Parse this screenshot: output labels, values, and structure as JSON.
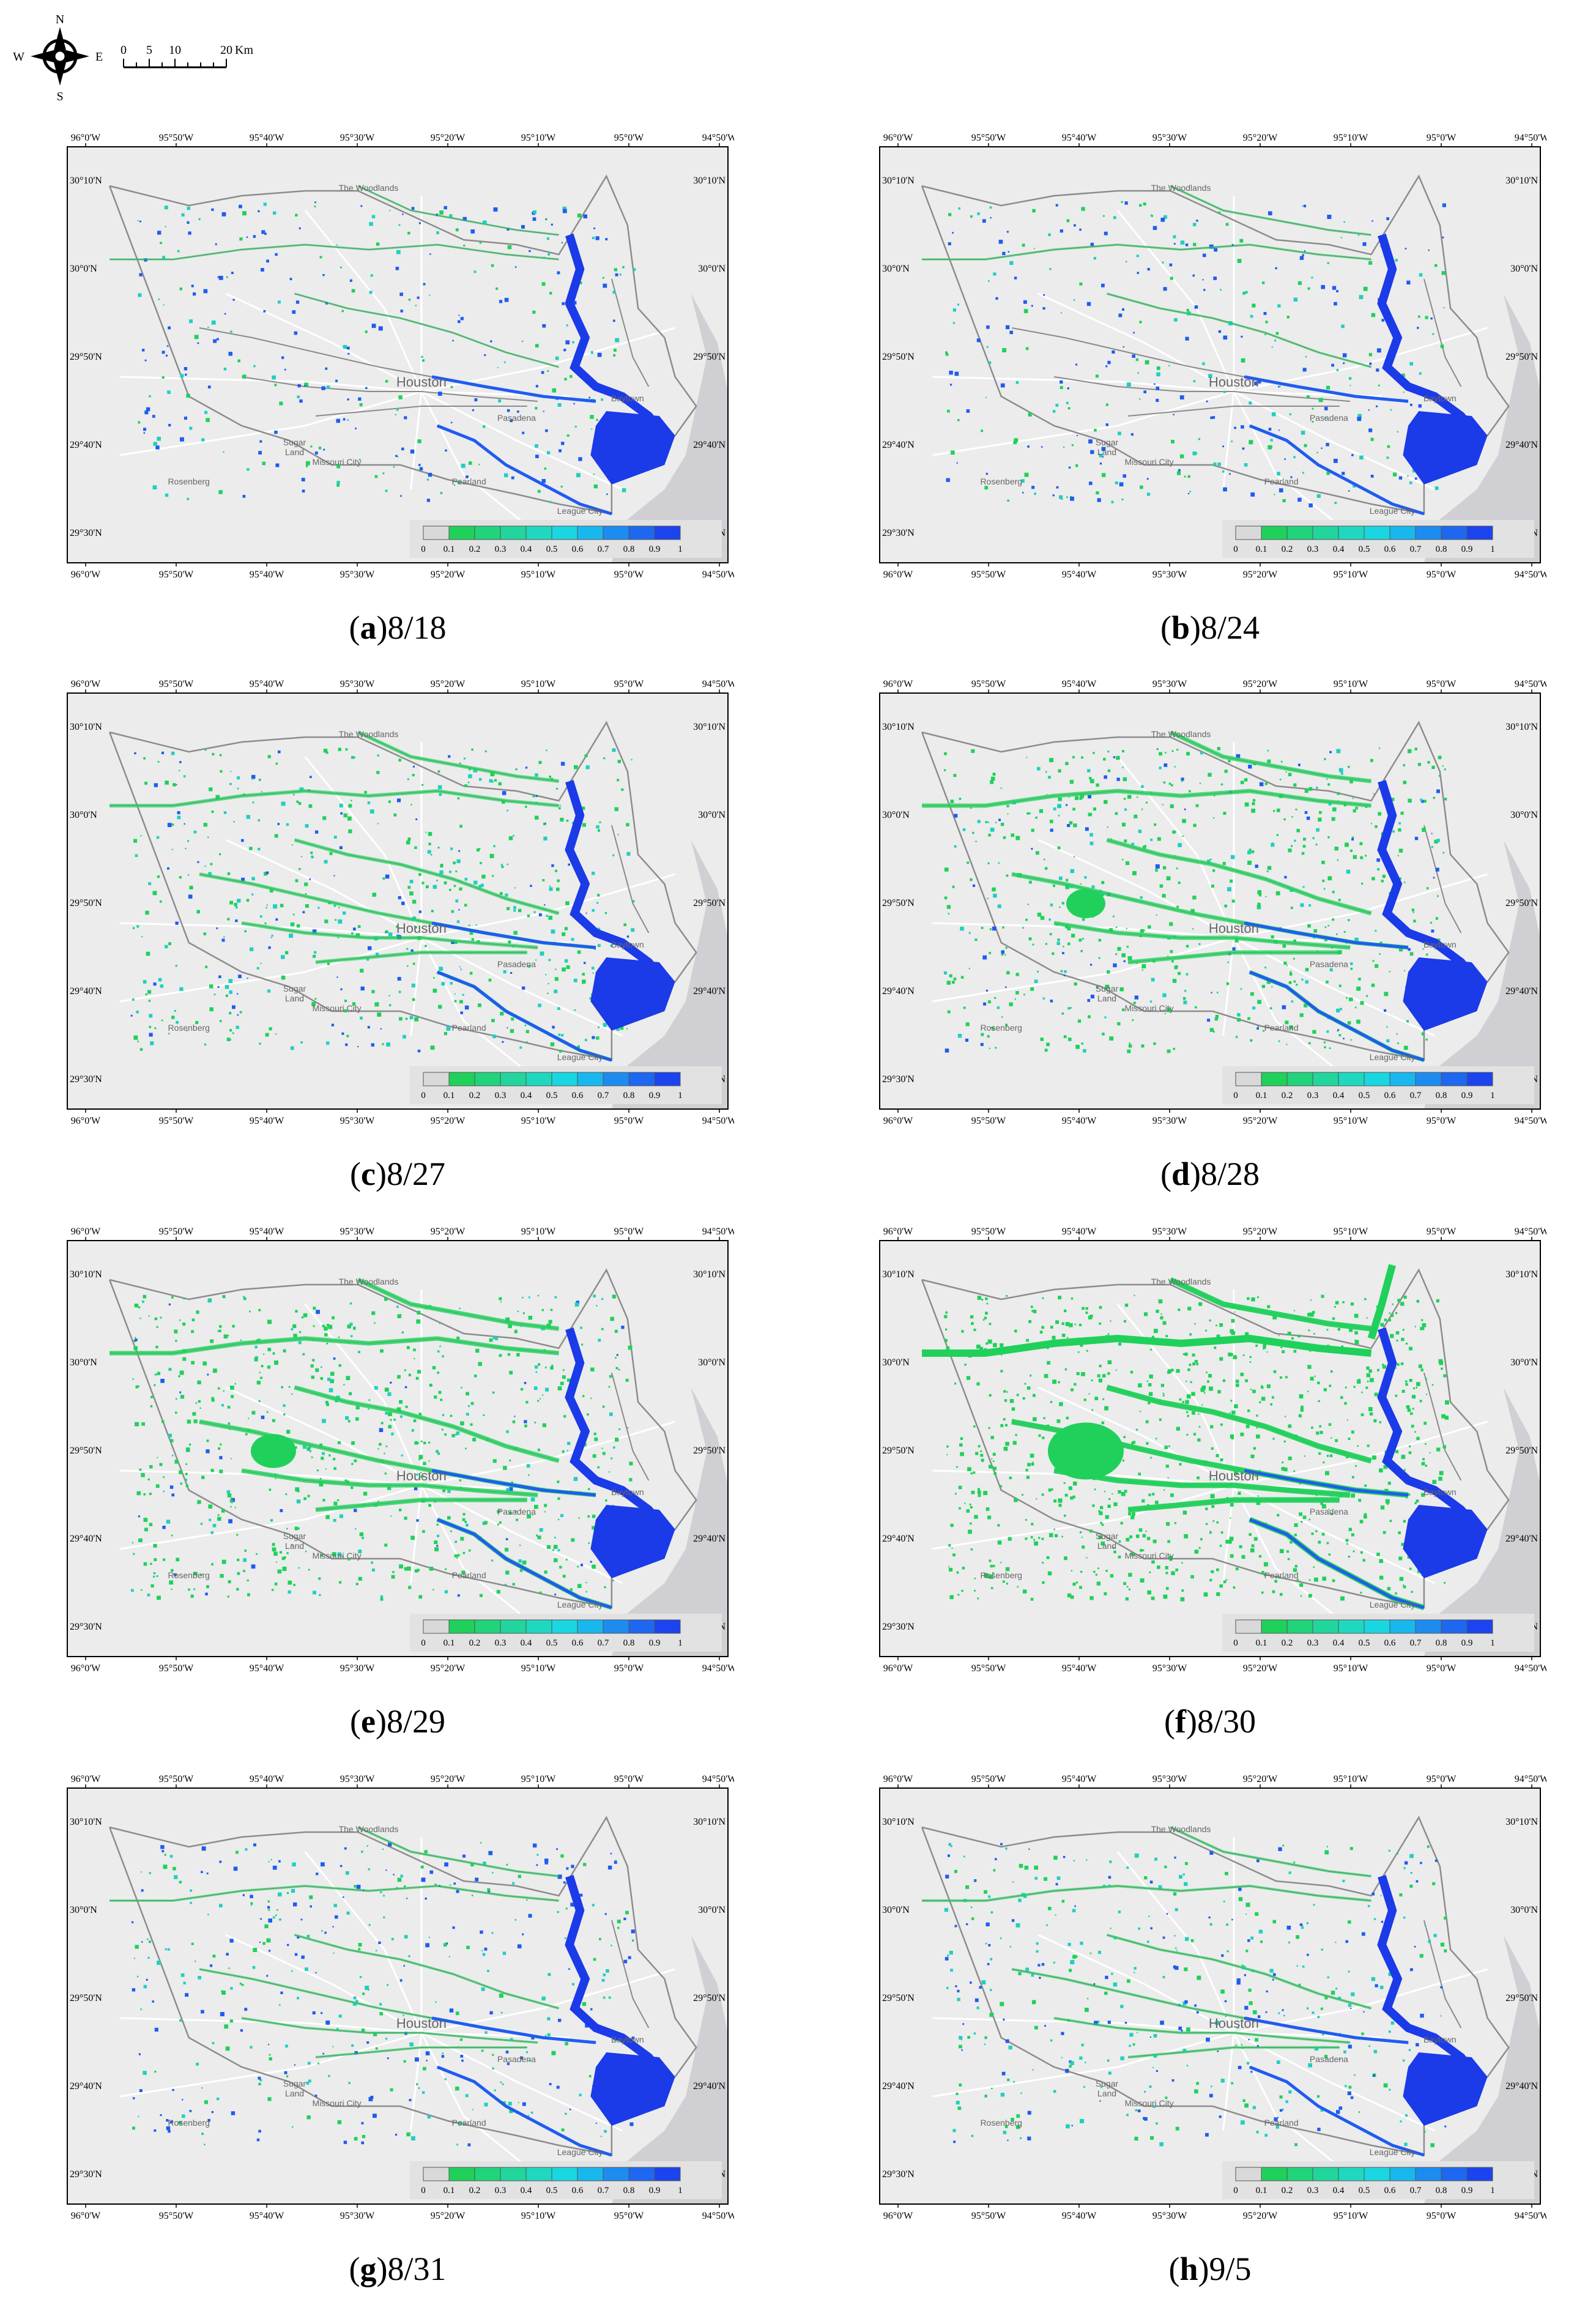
{
  "north_arrow": {
    "n": "N",
    "s": "S",
    "e": "E",
    "w": "W",
    "icon": "compass-rose-icon"
  },
  "scale_bar": {
    "ticks": [
      "0",
      "5",
      "10",
      "20"
    ],
    "unit": "Km"
  },
  "axes": {
    "lon_labels": [
      "96°0'W",
      "95°50'W",
      "95°40'W",
      "95°30'W",
      "95°20'W",
      "95°10'W",
      "95°0'W",
      "94°50'W"
    ],
    "lat_labels": [
      "30°10'N",
      "30°0'N",
      "29°50'N",
      "29°40'N",
      "29°30'N"
    ]
  },
  "place_labels": [
    {
      "name": "The Woodlands",
      "lon": -95.48,
      "lat": 30.16
    },
    {
      "name": "Houston",
      "lon": -95.38,
      "lat": 29.76
    },
    {
      "name": "Pasadena",
      "lon": -95.2,
      "lat": 29.69
    },
    {
      "name": "Baytown",
      "lon": -94.99,
      "lat": 29.73
    },
    {
      "name": "Sugar",
      "lon": -95.62,
      "lat": 29.64
    },
    {
      "name": "Land",
      "lon": -95.62,
      "lat": 29.62
    },
    {
      "name": "Missouri City",
      "lon": -95.54,
      "lat": 29.6
    },
    {
      "name": "Rosenberg",
      "lon": -95.82,
      "lat": 29.56
    },
    {
      "name": "Pearland",
      "lon": -95.29,
      "lat": 29.56
    },
    {
      "name": "League City",
      "lon": -95.08,
      "lat": 29.5
    }
  ],
  "legend": {
    "ticks": [
      "0",
      "0.1",
      "0.2",
      "0.3",
      "0.4",
      "0.5",
      "0.6",
      "0.7",
      "0.8",
      "0.9",
      "1"
    ],
    "colors": [
      "#d9d9d9",
      "#1fd15a",
      "#21d37a",
      "#22d59c",
      "#20d8c0",
      "#1ad6e0",
      "#18b8ee",
      "#1d8cf0",
      "#1e67f0",
      "#1b44ee"
    ]
  },
  "colors": {
    "land": "#ececec",
    "water": "#d0d0d4",
    "county_line": "#8c8c8c",
    "river": "#8a8a8a",
    "road": "#ffffff",
    "flood_low": "#1fd15a",
    "flood_mid": "#21cfc0",
    "flood_high": "#1f5cf0",
    "flood_max": "#1b3ae8"
  },
  "panels": [
    {
      "letter": "a",
      "date": "8/18",
      "green": 0.25,
      "high": 0.5,
      "spread": 0.2
    },
    {
      "letter": "b",
      "date": "8/24",
      "green": 0.3,
      "high": 0.55,
      "spread": 0.25
    },
    {
      "letter": "c",
      "date": "8/27",
      "green": 0.55,
      "high": 0.85,
      "spread": 0.55
    },
    {
      "letter": "d",
      "date": "8/28",
      "green": 0.7,
      "high": 0.9,
      "spread": 0.7
    },
    {
      "letter": "e",
      "date": "8/29",
      "green": 0.75,
      "high": 0.95,
      "spread": 0.75
    },
    {
      "letter": "f",
      "date": "8/30",
      "green": 1.0,
      "high": 1.0,
      "spread": 1.0
    },
    {
      "letter": "g",
      "date": "8/31",
      "green": 0.3,
      "high": 0.6,
      "spread": 0.3
    },
    {
      "letter": "h",
      "date": "9/5",
      "green": 0.3,
      "high": 0.7,
      "spread": 0.35
    }
  ]
}
